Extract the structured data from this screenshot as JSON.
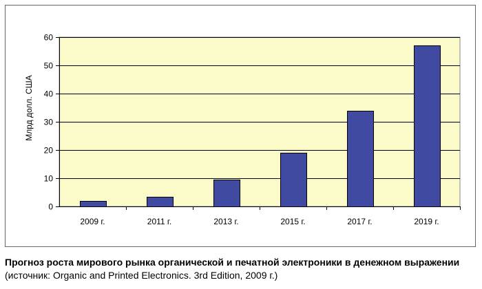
{
  "caption": {
    "title": "Прогноз роста мирового рынка органической и печатной электроники в денежном выражении",
    "source": "(источник: Organic and Printed Electronics. 3rd Edition, 2009 г.)"
  },
  "chart_data": {
    "type": "bar",
    "categories": [
      "2009 г.",
      "2011 г.",
      "2013 г.",
      "2015 г.",
      "2017 г.",
      "2019 г."
    ],
    "values": [
      2,
      3.3,
      9.5,
      19,
      34,
      57
    ],
    "ylabel": "Млрд долл. США",
    "xlabel": "",
    "ylim": [
      0,
      60
    ],
    "yticks": [
      0,
      10,
      20,
      30,
      40,
      50,
      60
    ],
    "grid": true,
    "colors": {
      "bar_fill": "#3f4aa0",
      "bar_stroke": "#000000",
      "plot_background": "#fbfac9",
      "gridline": "#000000"
    }
  }
}
